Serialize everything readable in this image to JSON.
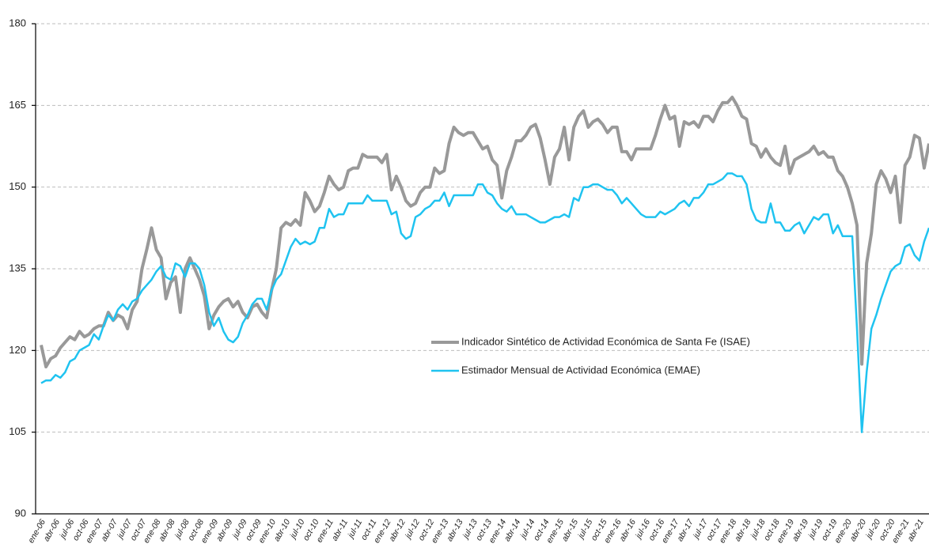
{
  "chart_data": {
    "type": "line",
    "categories": [
      "ene-06",
      null,
      null,
      "abr-06",
      null,
      null,
      "jul-06",
      null,
      null,
      "oct-06",
      null,
      null,
      "ene-07",
      null,
      null,
      "abr-07",
      null,
      null,
      "jul-07",
      null,
      null,
      "oct-07",
      null,
      null,
      "ene-08",
      null,
      null,
      "abr-08",
      null,
      null,
      "jul-08",
      null,
      null,
      "oct-08",
      null,
      null,
      "ene-09",
      null,
      null,
      "abr-09",
      null,
      null,
      "jul-09",
      null,
      null,
      "oct-09",
      null,
      null,
      "ene-10",
      null,
      null,
      "abr-10",
      null,
      null,
      "jul-10",
      null,
      null,
      "oct-10",
      null,
      null,
      "ene-11",
      null,
      null,
      "abr-11",
      null,
      null,
      "jul-11",
      null,
      null,
      "oct-11",
      null,
      null,
      "ene-12",
      null,
      null,
      "abr-12",
      null,
      null,
      "jul-12",
      null,
      null,
      "oct-12",
      null,
      null,
      "ene-13",
      null,
      null,
      "abr-13",
      null,
      null,
      "jul-13",
      null,
      null,
      "oct-13",
      null,
      null,
      "ene-14",
      null,
      null,
      "abr-14",
      null,
      null,
      "jul-14",
      null,
      null,
      "oct-14",
      null,
      null,
      "ene-15",
      null,
      null,
      "abr-15",
      null,
      null,
      "jul-15",
      null,
      null,
      "oct-15",
      null,
      null,
      "ene-16",
      null,
      null,
      "abr-16",
      null,
      null,
      "jul-16",
      null,
      null,
      "oct-16",
      null,
      null,
      "ene-17",
      null,
      null,
      "abr-17",
      null,
      null,
      "jul-17",
      null,
      null,
      "oct-17",
      null,
      null,
      "ene-18",
      null,
      null,
      "abr-18",
      null,
      null,
      "jul-18",
      null,
      null,
      "oct-18",
      null,
      null,
      "ene-19",
      null,
      null,
      "abr-19",
      null,
      null,
      "jul-19",
      null,
      null,
      "oct-19",
      null,
      null,
      "ene-20",
      null,
      null,
      "abr-20",
      null,
      null,
      "jul-20",
      null,
      null,
      "oct-20",
      null,
      null,
      "ene-21",
      null,
      null,
      "abr-21",
      null,
      null
    ],
    "series": [
      {
        "name": "Indicador Sintético de Actividad Económica de Santa Fe (ISAE)",
        "color": "#999999",
        "values": [
          121,
          117,
          118.5,
          119,
          120.5,
          121.5,
          122.5,
          122,
          123.5,
          122.5,
          123,
          124,
          124.5,
          124.5,
          127,
          125.5,
          126.5,
          126,
          124,
          127.5,
          129,
          135,
          138.5,
          142.5,
          138.5,
          137,
          129.5,
          132.5,
          133.5,
          127,
          135,
          137,
          135,
          133,
          130,
          124,
          126.5,
          128,
          129,
          129.5,
          128,
          129,
          127,
          126,
          128,
          128.5,
          127,
          126,
          131,
          135,
          142.5,
          143.5,
          143,
          144,
          143,
          149,
          147.5,
          145.5,
          146.5,
          149,
          152,
          150.5,
          149.5,
          150,
          153,
          153.5,
          153.5,
          156,
          155.5,
          155.5,
          155.5,
          154.5,
          156,
          149.5,
          152,
          150,
          147.5,
          146.5,
          147,
          149,
          150,
          150,
          153.5,
          152.5,
          153,
          158,
          161,
          160,
          159.5,
          160,
          160,
          158.5,
          157,
          157.5,
          155,
          154,
          148,
          153,
          155.5,
          158.5,
          158.5,
          159.5,
          161,
          161.5,
          159,
          155,
          150.5,
          155.5,
          157,
          161,
          155,
          161,
          163,
          164,
          161,
          162,
          162.5,
          161.5,
          160,
          161,
          161,
          156.5,
          156.5,
          155,
          157,
          157,
          157,
          157,
          159.5,
          162.5,
          165,
          162.5,
          163,
          157.5,
          162,
          161.5,
          162,
          161,
          163,
          163,
          162,
          164,
          165.5,
          165.5,
          166.5,
          165,
          163,
          162.5,
          158,
          157.5,
          155.5,
          157,
          155.5,
          154.5,
          154,
          157.5,
          152.5,
          155,
          155.5,
          156,
          156.5,
          157.5,
          156,
          156.5,
          155.5,
          155.5,
          153,
          152,
          150,
          147,
          143,
          117.5,
          136,
          141.5,
          150.5,
          153,
          151.5,
          149,
          152,
          143.5,
          154,
          155.5,
          159.5,
          159,
          153.5,
          158
        ]
      },
      {
        "name": "Estimador Mensual de Actividad Económica (EMAE)",
        "color": "#1fc3f0",
        "values": [
          114,
          114.5,
          114.5,
          115.5,
          115,
          116,
          118,
          118.5,
          120,
          120.5,
          121,
          123,
          122,
          124.5,
          126.5,
          125.5,
          127.5,
          128.5,
          127.5,
          129,
          129.5,
          131,
          132,
          133,
          134.5,
          135.5,
          133.5,
          133,
          136,
          135.5,
          133.5,
          136,
          136,
          135,
          132,
          127,
          124.5,
          126,
          123.5,
          122,
          121.5,
          122.5,
          125,
          126.5,
          128.5,
          129.5,
          129.5,
          127.5,
          131,
          133,
          134,
          136.5,
          139,
          140.5,
          139.5,
          140,
          139.5,
          140,
          142.5,
          142.5,
          146,
          144.5,
          145,
          145,
          147,
          147,
          147,
          147,
          148.5,
          147.5,
          147.5,
          147.5,
          147.5,
          145,
          145.5,
          141.5,
          140.5,
          141,
          144.5,
          145,
          146,
          146.5,
          147.5,
          147.5,
          149,
          146.5,
          148.5,
          148.5,
          148.5,
          148.5,
          148.5,
          150.5,
          150.5,
          149,
          148.5,
          147,
          146,
          145.5,
          146.5,
          145,
          145,
          145,
          144.5,
          144,
          143.5,
          143.5,
          144,
          144.5,
          144.5,
          145,
          144.5,
          148,
          147.5,
          150,
          150,
          150.5,
          150.5,
          150,
          149.5,
          149.5,
          148.5,
          147,
          148,
          147,
          146,
          145,
          144.5,
          144.5,
          144.5,
          145.5,
          145,
          145.5,
          146,
          147,
          147.5,
          146.5,
          148,
          148,
          149,
          150.5,
          150.5,
          151,
          151.5,
          152.5,
          152.5,
          152,
          152,
          150.5,
          146,
          144,
          143.5,
          143.5,
          147,
          143.5,
          143.5,
          142,
          142,
          143,
          143.5,
          141.5,
          143,
          144.5,
          144,
          145,
          145,
          141.5,
          143,
          141,
          141,
          141,
          124,
          105,
          116,
          124,
          126.5,
          129.5,
          132,
          134.5,
          135.5,
          136,
          139,
          139.5,
          137.5,
          136.5,
          140,
          142.5
        ]
      }
    ],
    "ylim": [
      90,
      180
    ],
    "yticks": [
      90,
      105,
      120,
      135,
      150,
      165,
      180
    ],
    "grid": true
  }
}
